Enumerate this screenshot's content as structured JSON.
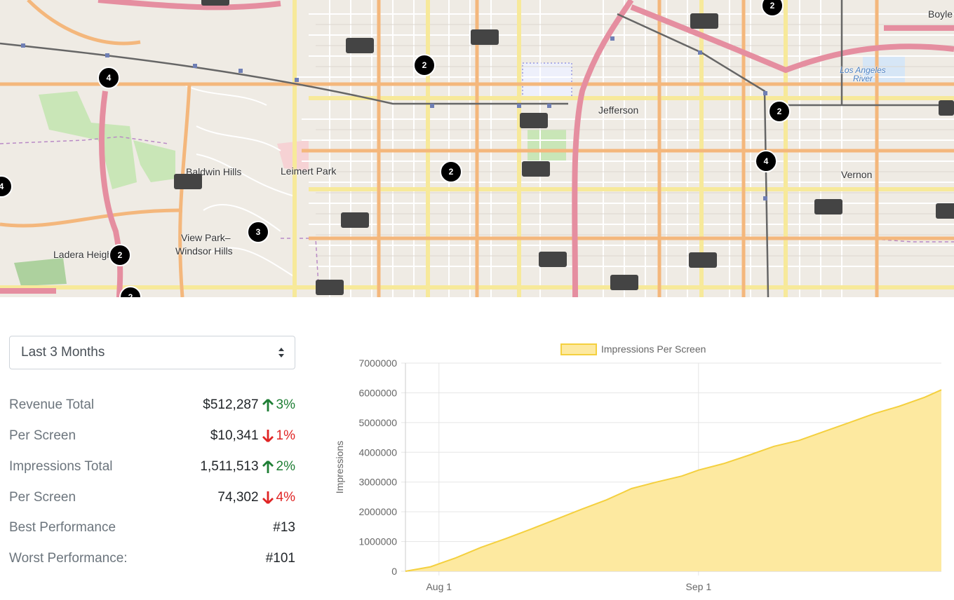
{
  "map": {
    "places": [
      {
        "name": "Baldwin Hills",
        "cls": ""
      },
      {
        "name": "Leimert Park",
        "cls": ""
      },
      {
        "name": "Jefferson",
        "cls": ""
      },
      {
        "name": "Vernon",
        "cls": ""
      },
      {
        "name": "Boyle",
        "cls": ""
      },
      {
        "name": "Ladera Heights",
        "cls": ""
      },
      {
        "name": "View Park–",
        "cls": ""
      },
      {
        "name": "Windsor Hills",
        "cls": ""
      },
      {
        "name": "Los Angeles River",
        "cls": "river"
      }
    ],
    "clusters": [
      {
        "count": "2"
      },
      {
        "count": "4"
      },
      {
        "count": "2"
      },
      {
        "count": "2"
      },
      {
        "count": "2"
      },
      {
        "count": "4"
      },
      {
        "count": "3"
      },
      {
        "count": "2"
      },
      {
        "count": "4"
      },
      {
        "count": "2"
      }
    ]
  },
  "period_select": {
    "value": "Last 3 Months"
  },
  "stats": [
    {
      "label": "Revenue Total",
      "value": "$512,287",
      "trend": "up",
      "change": "3%"
    },
    {
      "label": "Per Screen",
      "value": "$10,341",
      "trend": "down",
      "change": "1%"
    },
    {
      "label": "Impressions Total",
      "value": "1,511,513",
      "trend": "up",
      "change": "2%"
    },
    {
      "label": "Per Screen",
      "value": "74,302",
      "trend": "down",
      "change": "4%"
    },
    {
      "label": "Best Performance",
      "value": "#13",
      "trend": "",
      "change": ""
    },
    {
      "label": "Worst Performance:",
      "value": "#101",
      "trend": "",
      "change": ""
    }
  ],
  "colors": {
    "up": "#1e7e34",
    "down": "#e02424",
    "area_fill": "#fde9a0",
    "area_line": "#f4d03f"
  },
  "chart_data": {
    "type": "area",
    "legend": "Impressions Per Screen",
    "legend_position": "top",
    "ylabel": "Impressions",
    "xlabel": "",
    "grid": true,
    "ylim": [
      0,
      7000000
    ],
    "yticks": [
      "0",
      "1000000",
      "2000000",
      "3000000",
      "4000000",
      "5000000",
      "6000000",
      "7000000"
    ],
    "xticks": [
      "Aug 1",
      "Sep 1"
    ],
    "x_start": "2021-07-28",
    "x_end": "2021-09-30",
    "series": [
      {
        "name": "Impressions Per Screen",
        "x": [
          "2021-07-28",
          "2021-07-31",
          "2021-08-03",
          "2021-08-06",
          "2021-08-09",
          "2021-08-12",
          "2021-08-15",
          "2021-08-18",
          "2021-08-21",
          "2021-08-24",
          "2021-08-27",
          "2021-08-30",
          "2021-09-01",
          "2021-09-04",
          "2021-09-07",
          "2021-09-10",
          "2021-09-13",
          "2021-09-16",
          "2021-09-19",
          "2021-09-22",
          "2021-09-25",
          "2021-09-28",
          "2021-09-30"
        ],
        "values": [
          0,
          150000,
          450000,
          800000,
          1100000,
          1420000,
          1750000,
          2080000,
          2400000,
          2780000,
          3000000,
          3200000,
          3400000,
          3620000,
          3900000,
          4200000,
          4400000,
          4700000,
          5000000,
          5300000,
          5550000,
          5850000,
          6100000
        ]
      }
    ]
  }
}
